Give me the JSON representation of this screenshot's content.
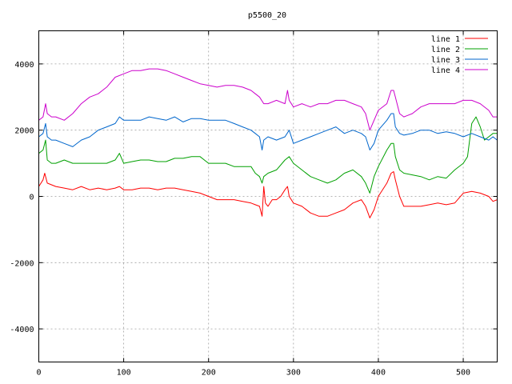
{
  "chart_data": {
    "type": "line",
    "title": "p5500_20",
    "xlabel": "",
    "ylabel": "",
    "xlim": [
      0,
      540
    ],
    "ylim": [
      -5000,
      5000
    ],
    "xticks": [
      0,
      100,
      200,
      300,
      400,
      500
    ],
    "yticks": [
      -4000,
      -2000,
      0,
      2000,
      4000
    ],
    "grid": true,
    "legend_position": "top-right",
    "series": [
      {
        "name": "line 1",
        "color": "#ff0000",
        "x": [
          0,
          5,
          7,
          10,
          15,
          20,
          30,
          40,
          50,
          60,
          70,
          80,
          90,
          95,
          100,
          110,
          120,
          130,
          140,
          150,
          160,
          170,
          180,
          190,
          200,
          210,
          220,
          230,
          240,
          250,
          255,
          260,
          263,
          265,
          267,
          270,
          275,
          280,
          285,
          290,
          293,
          295,
          300,
          310,
          320,
          330,
          340,
          350,
          360,
          370,
          380,
          385,
          390,
          395,
          400,
          410,
          415,
          418,
          420,
          425,
          430,
          440,
          450,
          460,
          470,
          480,
          490,
          500,
          510,
          520,
          530,
          535,
          540
        ],
        "y": [
          300,
          500,
          700,
          400,
          350,
          300,
          250,
          200,
          300,
          200,
          250,
          200,
          250,
          300,
          200,
          200,
          250,
          250,
          200,
          250,
          250,
          200,
          150,
          100,
          0,
          -100,
          -100,
          -100,
          -150,
          -200,
          -250,
          -300,
          -600,
          300,
          -200,
          -300,
          -100,
          -100,
          0,
          200,
          300,
          0,
          -200,
          -300,
          -500,
          -600,
          -600,
          -500,
          -400,
          -200,
          -100,
          -300,
          -650,
          -400,
          0,
          400,
          700,
          750,
          500,
          0,
          -300,
          -300,
          -300,
          -250,
          -200,
          -250,
          -200,
          100,
          150,
          100,
          0,
          -150,
          -100
        ]
      },
      {
        "name": "line 2",
        "color": "#00a000",
        "x": [
          0,
          5,
          8,
          10,
          15,
          20,
          30,
          40,
          50,
          60,
          70,
          80,
          90,
          95,
          100,
          110,
          120,
          130,
          140,
          150,
          160,
          170,
          180,
          190,
          200,
          210,
          220,
          230,
          240,
          250,
          255,
          260,
          263,
          265,
          270,
          280,
          290,
          295,
          300,
          310,
          320,
          330,
          340,
          350,
          360,
          370,
          380,
          385,
          390,
          395,
          400,
          410,
          415,
          418,
          420,
          425,
          430,
          440,
          450,
          460,
          470,
          480,
          490,
          500,
          505,
          510,
          515,
          520,
          525,
          530,
          535,
          540
        ],
        "y": [
          1300,
          1400,
          1700,
          1100,
          1000,
          1000,
          1100,
          1000,
          1000,
          1000,
          1000,
          1000,
          1100,
          1300,
          1000,
          1050,
          1100,
          1100,
          1050,
          1050,
          1150,
          1150,
          1200,
          1200,
          1000,
          1000,
          1000,
          900,
          900,
          900,
          700,
          600,
          400,
          600,
          700,
          800,
          1100,
          1200,
          1000,
          800,
          600,
          500,
          400,
          500,
          700,
          800,
          600,
          400,
          100,
          600,
          900,
          1400,
          1600,
          1600,
          1200,
          800,
          700,
          650,
          600,
          500,
          600,
          550,
          800,
          1000,
          1200,
          2200,
          2400,
          2100,
          1700,
          1800,
          1900,
          1900
        ]
      },
      {
        "name": "line 3",
        "color": "#0066cc",
        "x": [
          0,
          5,
          8,
          10,
          15,
          20,
          30,
          40,
          50,
          60,
          70,
          80,
          90,
          95,
          100,
          110,
          120,
          130,
          140,
          150,
          160,
          170,
          180,
          190,
          200,
          210,
          220,
          230,
          240,
          250,
          255,
          260,
          263,
          265,
          270,
          280,
          290,
          295,
          300,
          310,
          320,
          330,
          340,
          350,
          360,
          370,
          380,
          385,
          390,
          395,
          400,
          410,
          415,
          418,
          420,
          425,
          430,
          440,
          450,
          460,
          470,
          480,
          490,
          500,
          510,
          520,
          530,
          535,
          540
        ],
        "y": [
          1800,
          1900,
          2200,
          1800,
          1700,
          1700,
          1600,
          1500,
          1700,
          1800,
          2000,
          2100,
          2200,
          2400,
          2300,
          2300,
          2300,
          2400,
          2350,
          2300,
          2400,
          2250,
          2350,
          2350,
          2300,
          2300,
          2300,
          2200,
          2100,
          2000,
          1900,
          1800,
          1400,
          1700,
          1800,
          1700,
          1800,
          2000,
          1600,
          1700,
          1800,
          1900,
          2000,
          2100,
          1900,
          2000,
          1900,
          1800,
          1400,
          1600,
          2000,
          2300,
          2500,
          2500,
          2100,
          1900,
          1850,
          1900,
          2000,
          2000,
          1900,
          1950,
          1900,
          1800,
          1900,
          1800,
          1700,
          1800,
          1700
        ]
      },
      {
        "name": "line 4",
        "color": "#cc00cc",
        "x": [
          0,
          5,
          8,
          10,
          15,
          20,
          30,
          40,
          50,
          60,
          70,
          80,
          90,
          100,
          110,
          120,
          130,
          140,
          150,
          160,
          170,
          180,
          190,
          200,
          210,
          220,
          230,
          240,
          250,
          255,
          260,
          265,
          270,
          280,
          290,
          293,
          295,
          300,
          310,
          320,
          330,
          340,
          350,
          360,
          370,
          380,
          385,
          390,
          395,
          400,
          410,
          415,
          418,
          420,
          425,
          430,
          440,
          450,
          460,
          470,
          480,
          490,
          500,
          510,
          520,
          530,
          535,
          540
        ],
        "y": [
          2300,
          2400,
          2800,
          2500,
          2400,
          2400,
          2300,
          2500,
          2800,
          3000,
          3100,
          3300,
          3600,
          3700,
          3800,
          3800,
          3850,
          3850,
          3800,
          3700,
          3600,
          3500,
          3400,
          3350,
          3300,
          3350,
          3350,
          3300,
          3200,
          3100,
          3000,
          2800,
          2800,
          2900,
          2800,
          3200,
          2900,
          2700,
          2800,
          2700,
          2800,
          2800,
          2900,
          2900,
          2800,
          2700,
          2500,
          2000,
          2300,
          2600,
          2800,
          3200,
          3200,
          3000,
          2500,
          2400,
          2500,
          2700,
          2800,
          2800,
          2800,
          2800,
          2900,
          2900,
          2800,
          2600,
          2400,
          2400
        ]
      }
    ]
  }
}
